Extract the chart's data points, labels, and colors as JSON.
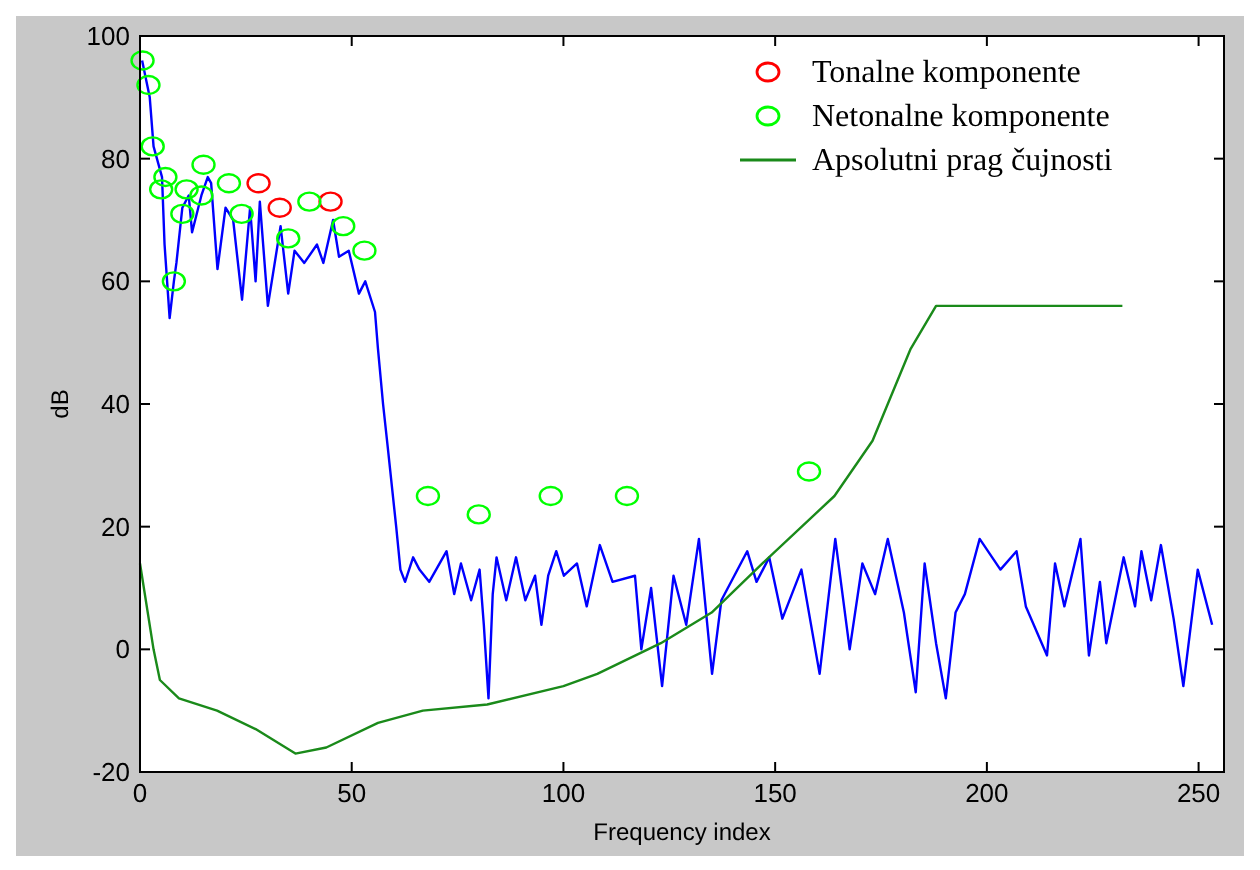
{
  "chart_data": {
    "type": "line",
    "xlabel": "Frequency index",
    "ylabel": "dB",
    "xlim": [
      0,
      256
    ],
    "ylim": [
      -20,
      100
    ],
    "xticks": [
      0,
      50,
      100,
      150,
      200,
      250
    ],
    "yticks": [
      -20,
      0,
      20,
      40,
      60,
      80,
      100
    ],
    "grid": false,
    "legend": "top right",
    "marker": "none",
    "line_style": "solid",
    "series": [
      {
        "color": "#0000ff",
        "x": [
          0.5,
          2.3,
          3.2,
          5.2,
          5.8,
          7,
          8,
          8.6,
          10,
          11.5,
          12.3,
          14.5,
          16,
          16.8,
          18.3,
          20.2,
          22,
          24.1,
          26,
          27.3,
          28.3,
          30.2,
          33.2,
          35,
          36.5,
          38.8,
          41.8,
          43.3,
          45.6,
          47,
          49.3,
          51.7,
          53.2,
          55.5,
          56.2,
          57.4,
          58.5,
          60.5,
          61.5,
          62.6,
          64.5,
          66,
          68.3,
          72.4,
          74.2,
          75.8,
          78.2,
          80.2,
          81.2,
          82.3,
          83.3,
          84.2,
          86.5,
          88.8,
          91,
          93.3,
          94.8,
          96.4,
          98.3,
          100.1,
          103.2,
          105.5,
          108.6,
          111.6,
          116.9,
          118.4,
          120.7,
          123.3,
          126,
          129,
          132,
          135.1,
          137.3,
          143.4,
          145.6,
          148.6,
          151.7,
          156.2,
          160.5,
          164.2,
          167.6,
          170.6,
          173.6,
          176.6,
          180.4,
          183.2,
          185.3,
          188,
          190.3,
          192.6,
          194.8,
          198.3,
          203.2,
          207,
          209.2,
          214.2,
          216.1,
          218.3,
          222.1,
          224.1,
          226.7,
          228.2,
          232.3,
          235,
          236.5,
          238.8,
          241.1,
          244.1,
          246.4,
          249.8,
          253.2
        ],
        "values": [
          96,
          90,
          82,
          77,
          66,
          54,
          60,
          63,
          72,
          74,
          68,
          74,
          77,
          76,
          62,
          72,
          70,
          57,
          72,
          60,
          73,
          56,
          69,
          58,
          65,
          63,
          66,
          63,
          70,
          64,
          65,
          58,
          60,
          55,
          49,
          40,
          33,
          20,
          13,
          11,
          15,
          13,
          11,
          16,
          9,
          14,
          8,
          13,
          4,
          -8,
          9,
          15,
          8,
          15,
          8,
          12,
          4,
          12,
          16,
          12,
          14,
          7,
          17,
          11,
          12,
          0,
          10,
          -6,
          12,
          4,
          18,
          -4,
          8,
          16,
          11,
          15,
          5,
          13,
          -4,
          18,
          0,
          14,
          9,
          18,
          6,
          -7,
          14,
          1,
          -8,
          6,
          9,
          18,
          13,
          16,
          7,
          -1,
          14,
          7,
          18,
          -1,
          11,
          1,
          15,
          7,
          16,
          8,
          17,
          5,
          -6,
          13,
          4
        ]
      },
      {
        "type": "scatter",
        "name": "Tonalne komponente",
        "color": "#ff0000",
        "marker": "circle",
        "x": [
          28,
          33,
          45
        ],
        "values": [
          76,
          72,
          73
        ]
      },
      {
        "type": "scatter",
        "name": "Netonalne komponente",
        "color": "#00ff00",
        "marker": "circle",
        "x": [
          0.6,
          2,
          3,
          5,
          6,
          8,
          10,
          11,
          14.5,
          15,
          21,
          24,
          35,
          40,
          48,
          53,
          68,
          80,
          97,
          115,
          158
        ],
        "values": [
          96,
          92,
          82,
          75,
          77,
          60,
          71,
          75,
          74,
          79,
          76,
          71,
          67,
          73,
          69,
          65,
          25,
          22,
          25,
          25,
          29
        ]
      },
      {
        "type": "line",
        "name": "Apsolutni prag čujnosti",
        "color": "#1a8a1a",
        "x": [
          0,
          3.2,
          4.7,
          9.2,
          18.2,
          27.3,
          36.7,
          44,
          56.2,
          66.8,
          82,
          100,
          108,
          123,
          135,
          147,
          164,
          173,
          182,
          188,
          232
        ],
        "values": [
          14,
          0,
          -5,
          -8,
          -10,
          -13,
          -17,
          -16,
          -12,
          -10,
          -9,
          -6,
          -4,
          1,
          6,
          14,
          25,
          34,
          49,
          56,
          56
        ]
      }
    ]
  }
}
